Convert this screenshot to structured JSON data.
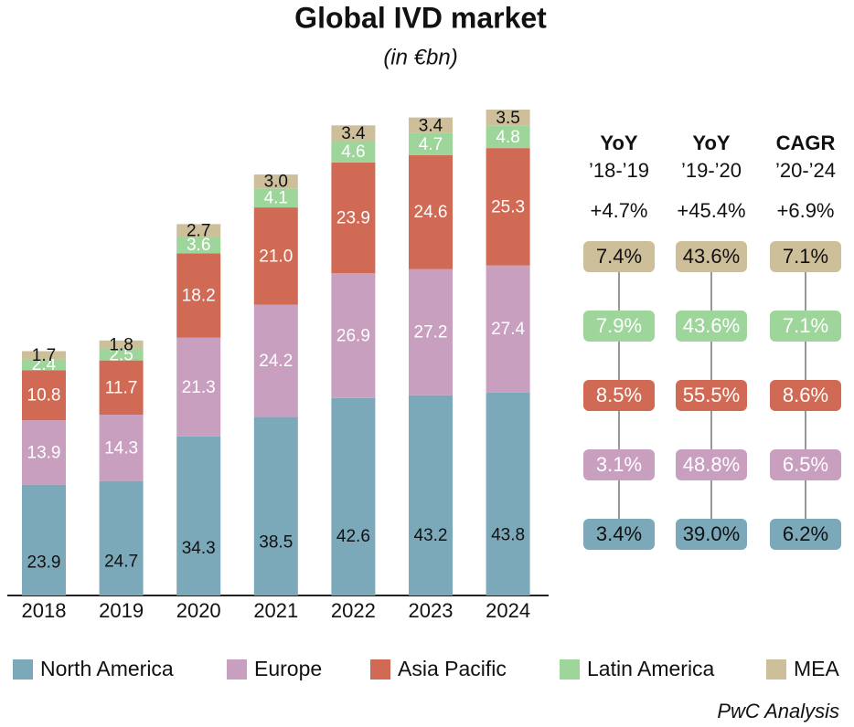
{
  "chart_data": {
    "type": "bar",
    "stacked": true,
    "title": "Global IVD market",
    "subtitle": "(in €bn)",
    "source": "PwC Analysis",
    "categories": [
      "2018",
      "2019",
      "2020",
      "2021",
      "2022",
      "2023",
      "2024"
    ],
    "series": [
      {
        "name": "North America",
        "color": "#7ba9b9",
        "values": [
          23.9,
          24.7,
          34.3,
          38.5,
          42.6,
          43.2,
          43.8
        ],
        "value_labels": [
          "23.9",
          "24.7",
          "34.3",
          "38.5",
          "42.6",
          "43.2",
          "43.8"
        ]
      },
      {
        "name": "Europe",
        "color": "#c99fc0",
        "values": [
          13.9,
          14.3,
          21.3,
          24.2,
          26.9,
          27.2,
          27.4
        ],
        "value_labels": [
          "13.9",
          "14.3",
          "21.3",
          "24.2",
          "26.9",
          "27.2",
          "27.4"
        ]
      },
      {
        "name": "Asia Pacific",
        "color": "#d06a55",
        "values": [
          10.8,
          11.7,
          18.2,
          21.0,
          23.9,
          24.6,
          25.3
        ],
        "value_labels": [
          "10.8",
          "11.7",
          "18.2",
          "21.0",
          "23.9",
          "24.6",
          "25.3"
        ]
      },
      {
        "name": "Latin America",
        "color": "#9dd59b",
        "values": [
          2.4,
          2.5,
          3.6,
          4.1,
          4.6,
          4.7,
          4.8
        ],
        "value_labels": [
          "2.4",
          "2.5",
          "3.6",
          "4.1",
          "4.6",
          "4.7",
          "4.8"
        ]
      },
      {
        "name": "MEA",
        "color": "#cebf9b",
        "values": [
          1.7,
          1.8,
          2.7,
          3.0,
          3.4,
          3.4,
          3.5
        ],
        "value_labels": [
          "1.7",
          "1.8",
          "2.7",
          "3.0",
          "3.4",
          "3.4",
          "3.5"
        ]
      }
    ],
    "growth_table": {
      "columns": [
        {
          "title": "YoY",
          "period": "’18-’19"
        },
        {
          "title": "YoY",
          "period": "’19-’20"
        },
        {
          "title": "CAGR",
          "period": "’20-’24"
        }
      ],
      "totals": [
        "+4.7%",
        "+45.4%",
        "+6.9%"
      ],
      "rows": [
        [
          "7.4%",
          "43.6%",
          "7.1%"
        ],
        [
          "7.9%",
          "43.6%",
          "7.1%"
        ],
        [
          "8.5%",
          "55.5%",
          "8.6%"
        ],
        [
          "3.1%",
          "48.8%",
          "6.5%"
        ],
        [
          "3.4%",
          "39.0%",
          "6.2%"
        ]
      ]
    }
  }
}
